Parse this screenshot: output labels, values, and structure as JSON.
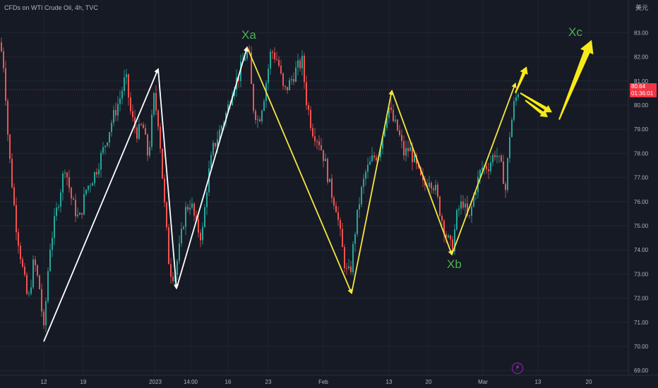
{
  "header": {
    "title": "CFDs on WTI Crude Oil, 4h, TVC",
    "currency": "美元"
  },
  "price_badge": {
    "price": "80.64",
    "countdown": "01:36:01"
  },
  "annotations": {
    "xa": "Xa",
    "xb": "Xb",
    "xc": "Xc"
  },
  "colors": {
    "background": "#161a25",
    "up": "#26a69a",
    "down": "#ef5350",
    "white_wave": "#ffffff",
    "yellow_wave": "#f5e642",
    "yellow_arrow": "#f7ea18",
    "label": "#4caf50",
    "price_line": "#f23645"
  },
  "chart_data": {
    "type": "candlestick",
    "title": "CFDs on WTI Crude Oil, 4h, TVC",
    "y_axis": {
      "ticks": [
        "69.00",
        "70.00",
        "71.00",
        "72.00",
        "73.00",
        "74.00",
        "75.00",
        "76.00",
        "77.00",
        "78.00",
        "79.00",
        "80.00",
        "81.00",
        "82.00",
        "83.00"
      ],
      "range": [
        68.6,
        84.3
      ],
      "side": "right"
    },
    "x_axis": {
      "ticks": [
        "12",
        "19",
        "2023",
        "14:00",
        "16",
        "23",
        "Feb",
        "13",
        "20",
        "Mar",
        "13",
        "20"
      ]
    },
    "current_price": 80.64,
    "price_path": [
      [
        0,
        82.6
      ],
      [
        6,
        81.5
      ],
      [
        12,
        78.3
      ],
      [
        22,
        75.2
      ],
      [
        32,
        73.2
      ],
      [
        40,
        71.8
      ],
      [
        48,
        73.6
      ],
      [
        56,
        72.4
      ],
      [
        62,
        70.6
      ],
      [
        70,
        74.0
      ],
      [
        80,
        75.6
      ],
      [
        92,
        77.5
      ],
      [
        102,
        76.0
      ],
      [
        112,
        75.2
      ],
      [
        122,
        76.5
      ],
      [
        135,
        77.2
      ],
      [
        148,
        78.3
      ],
      [
        158,
        79.3
      ],
      [
        170,
        80.3
      ],
      [
        178,
        81.2
      ],
      [
        186,
        79.5
      ],
      [
        195,
        78.8
      ],
      [
        202,
        79.2
      ],
      [
        210,
        77.8
      ],
      [
        218,
        80.3
      ],
      [
        225,
        79.2
      ],
      [
        232,
        76.2
      ],
      [
        240,
        73.2
      ],
      [
        247,
        72.9
      ],
      [
        255,
        74.2
      ],
      [
        262,
        75.6
      ],
      [
        270,
        76.0
      ],
      [
        278,
        75.0
      ],
      [
        286,
        74.5
      ],
      [
        294,
        76.9
      ],
      [
        302,
        78.2
      ],
      [
        312,
        79.0
      ],
      [
        322,
        79.8
      ],
      [
        330,
        80.8
      ],
      [
        338,
        81.2
      ],
      [
        346,
        82.0
      ],
      [
        352,
        82.3
      ],
      [
        358,
        80.0
      ],
      [
        366,
        79.3
      ],
      [
        374,
        80.4
      ],
      [
        384,
        82.3
      ],
      [
        394,
        81.8
      ],
      [
        402,
        80.5
      ],
      [
        410,
        80.9
      ],
      [
        420,
        81.5
      ],
      [
        428,
        81.8
      ],
      [
        434,
        80.2
      ],
      [
        442,
        79.0
      ],
      [
        452,
        78.5
      ],
      [
        460,
        77.7
      ],
      [
        468,
        76.5
      ],
      [
        476,
        75.8
      ],
      [
        484,
        74.2
      ],
      [
        490,
        73.1
      ],
      [
        496,
        73.0
      ],
      [
        502,
        74.6
      ],
      [
        510,
        76.2
      ],
      [
        518,
        77.2
      ],
      [
        528,
        77.8
      ],
      [
        536,
        78.0
      ],
      [
        542,
        78.8
      ],
      [
        550,
        80.0
      ],
      [
        556,
        79.4
      ],
      [
        564,
        78.9
      ],
      [
        572,
        78.0
      ],
      [
        580,
        78.2
      ],
      [
        590,
        77.4
      ],
      [
        600,
        76.6
      ],
      [
        608,
        77.0
      ],
      [
        616,
        76.6
      ],
      [
        624,
        75.5
      ],
      [
        632,
        74.6
      ],
      [
        640,
        74.0
      ],
      [
        648,
        75.6
      ],
      [
        656,
        76.0
      ],
      [
        664,
        75.1
      ],
      [
        672,
        76.4
      ],
      [
        682,
        77.4
      ],
      [
        692,
        77.5
      ],
      [
        702,
        78.1
      ],
      [
        712,
        77.2
      ],
      [
        716,
        76.5
      ],
      [
        722,
        78.8
      ],
      [
        728,
        80.0
      ],
      [
        734,
        80.6
      ]
    ],
    "waves": [
      {
        "color": "white",
        "path": [
          [
            62,
            70.2
          ],
          [
            224,
            81.5
          ],
          [
            250,
            72.4
          ],
          [
            350,
            82.4
          ]
        ]
      },
      {
        "color": "yellow",
        "path": [
          [
            350,
            82.4
          ],
          [
            498,
            72.2
          ],
          [
            555,
            80.6
          ],
          [
            640,
            73.8
          ],
          [
            730,
            80.9
          ]
        ]
      }
    ],
    "forecast_arrows": [
      {
        "color": "yellow",
        "from": [
          730,
          80.5
        ],
        "to": [
          746,
          81.6
        ]
      },
      {
        "color": "yellow",
        "from": [
          737,
          80.5
        ],
        "to": [
          782,
          79.7
        ]
      },
      {
        "color": "yellow",
        "from": [
          744,
          80.2
        ],
        "to": [
          776,
          79.5
        ]
      },
      {
        "color": "yellow",
        "from": [
          792,
          79.4
        ],
        "to": [
          838,
          82.7
        ]
      }
    ],
    "labels": [
      {
        "text": "Xa",
        "at": [
          352,
          83.2
        ]
      },
      {
        "text": "Xb",
        "at": [
          643,
          73.0
        ]
      },
      {
        "text": "Xc",
        "at": [
          815,
          82.9
        ]
      }
    ]
  }
}
